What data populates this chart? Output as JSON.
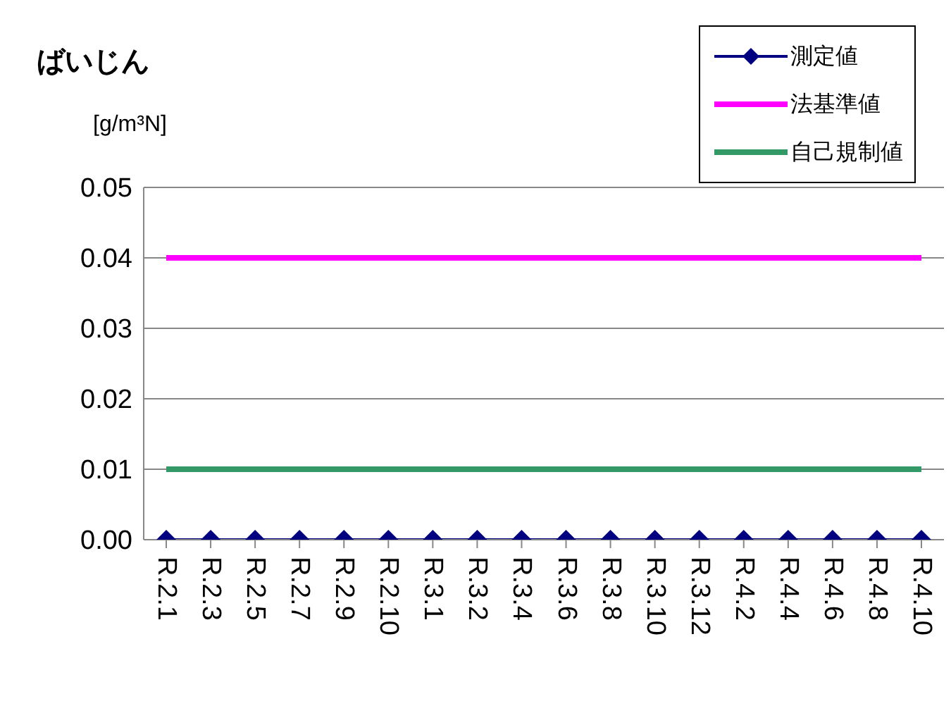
{
  "chart_data": {
    "type": "line",
    "title": "ばいじん",
    "ylabel": "[g/m³N]",
    "categories": [
      "R.2.1",
      "R.2.3",
      "R.2.5",
      "R.2.7",
      "R.2.9",
      "R.2.10",
      "R.3.1",
      "R.3.2",
      "R.3.4",
      "R.3.6",
      "R.3.8",
      "R.3.10",
      "R.3.12",
      "R.4.2",
      "R.4.4",
      "R.4.6",
      "R.4.8",
      "R.4.10"
    ],
    "series": [
      {
        "name": "測定値",
        "color": "#000080",
        "marker": "diamond",
        "values": [
          0,
          0,
          0,
          0,
          0,
          0,
          0,
          0,
          0,
          0,
          0,
          0,
          0,
          0,
          0,
          0,
          0,
          0
        ]
      },
      {
        "name": "法基準値",
        "color": "#ff00ff",
        "marker": "none",
        "values": [
          0.04,
          0.04,
          0.04,
          0.04,
          0.04,
          0.04,
          0.04,
          0.04,
          0.04,
          0.04,
          0.04,
          0.04,
          0.04,
          0.04,
          0.04,
          0.04,
          0.04,
          0.04
        ]
      },
      {
        "name": "自己規制値",
        "color": "#339966",
        "marker": "none",
        "values": [
          0.01,
          0.01,
          0.01,
          0.01,
          0.01,
          0.01,
          0.01,
          0.01,
          0.01,
          0.01,
          0.01,
          0.01,
          0.01,
          0.01,
          0.01,
          0.01,
          0.01,
          0.01
        ]
      }
    ],
    "ylim": [
      0,
      0.05
    ],
    "yticks": [
      {
        "value": 0,
        "label": "0.00"
      },
      {
        "value": 0.01,
        "label": "0.01"
      },
      {
        "value": 0.02,
        "label": "0.02"
      },
      {
        "value": 0.03,
        "label": "0.03"
      },
      {
        "value": 0.04,
        "label": "0.04"
      },
      {
        "value": 0.05,
        "label": "0.05"
      }
    ],
    "grid": "y",
    "legend": "top right"
  }
}
